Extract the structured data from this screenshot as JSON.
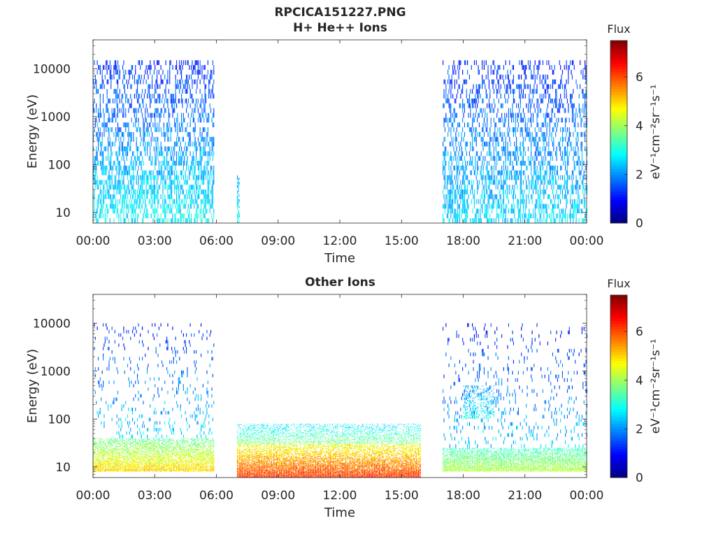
{
  "figure_title": "RPCICA151227.PNG",
  "chart_data": [
    {
      "type": "heatmap",
      "title": "H+ He++ Ions",
      "xlabel": "Time",
      "ylabel": "Energy (eV)",
      "x_ticks": [
        "00:00",
        "03:00",
        "06:00",
        "09:00",
        "12:00",
        "15:00",
        "18:00",
        "21:00",
        "00:00"
      ],
      "y_ticks": [
        "10",
        "100",
        "1000",
        "10000"
      ],
      "xlim_hours": [
        0,
        24
      ],
      "ylim": [
        6,
        40000
      ],
      "y_scale": "log",
      "colorbar": {
        "label": "Flux",
        "units": "eV⁻¹cm⁻²sr⁻¹s⁻¹",
        "ticks": [
          "0",
          "2",
          "4",
          "6"
        ],
        "range": [
          0,
          7.5
        ],
        "colormap": "jet"
      },
      "regions": [
        {
          "t_start": 0.0,
          "t_end": 5.9,
          "e_min": 6,
          "e_max": 15000,
          "flux": [
            2.8,
            2.0,
            1.2
          ],
          "density": 0.55
        },
        {
          "t_start": 7.0,
          "t_end": 7.1,
          "e_min": 6,
          "e_max": 60,
          "flux": [
            3.0,
            2.5,
            2.0
          ],
          "density": 0.8
        },
        {
          "t_start": 17.0,
          "t_end": 24.0,
          "e_min": 6,
          "e_max": 15000,
          "flux": [
            2.6,
            1.9,
            1.2
          ],
          "density": 0.5
        }
      ],
      "grid": false
    },
    {
      "type": "heatmap",
      "title": "Other Ions",
      "xlabel": "Time",
      "ylabel": "Energy (eV)",
      "x_ticks": [
        "00:00",
        "03:00",
        "06:00",
        "09:00",
        "12:00",
        "15:00",
        "18:00",
        "21:00",
        "00:00"
      ],
      "y_ticks": [
        "10",
        "100",
        "1000",
        "10000"
      ],
      "xlim_hours": [
        0,
        24
      ],
      "ylim": [
        6,
        40000
      ],
      "y_scale": "log",
      "colorbar": {
        "label": "Flux",
        "units": "eV⁻¹cm⁻²sr⁻¹s⁻¹",
        "ticks": [
          "0",
          "2",
          "4",
          "6"
        ],
        "range": [
          0,
          7.5
        ],
        "colormap": "jet"
      },
      "regions": [
        {
          "t_start": 0.0,
          "t_end": 5.9,
          "e_min": 8,
          "e_max": 40,
          "flux": [
            5.0,
            4.2,
            3.5
          ],
          "density": 0.9
        },
        {
          "t_start": 0.0,
          "t_end": 5.9,
          "e_min": 40,
          "e_max": 10000,
          "flux": [
            2.5,
            1.8,
            1.2
          ],
          "density": 0.12
        },
        {
          "t_start": 7.0,
          "t_end": 15.9,
          "e_min": 6,
          "e_max": 30,
          "flux": [
            6.2,
            5.5,
            4.5
          ],
          "density": 1.0
        },
        {
          "t_start": 7.0,
          "t_end": 15.9,
          "e_min": 30,
          "e_max": 80,
          "flux": [
            3.8,
            3.0,
            2.5
          ],
          "density": 0.5
        },
        {
          "t_start": 17.0,
          "t_end": 24.0,
          "e_min": 8,
          "e_max": 25,
          "flux": [
            4.2,
            3.8,
            3.2
          ],
          "density": 0.9
        },
        {
          "t_start": 17.0,
          "t_end": 24.0,
          "e_min": 25,
          "e_max": 10000,
          "flux": [
            2.4,
            1.7,
            1.1
          ],
          "density": 0.12
        },
        {
          "t_start": 18.0,
          "t_end": 19.5,
          "e_min": 100,
          "e_max": 500,
          "flux": [
            3.0,
            2.5,
            2.0
          ],
          "density": 0.45
        }
      ],
      "grid": false
    }
  ]
}
